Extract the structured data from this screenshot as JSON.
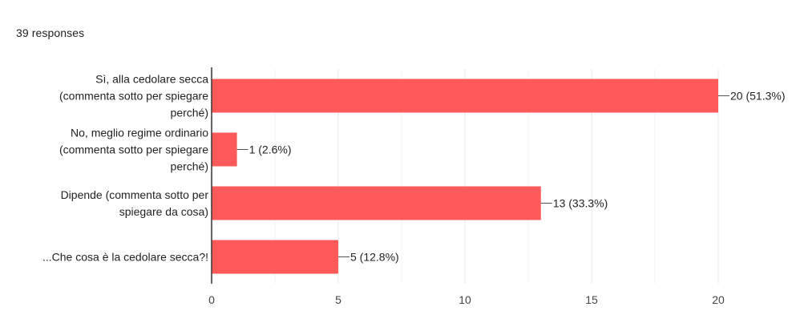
{
  "summary": {
    "responses_label": "39 responses"
  },
  "chart_data": {
    "type": "bar",
    "orientation": "horizontal",
    "categories": [
      [
        "Sì, alla cedolare secca",
        "(commenta sotto per spiegare",
        "perché)"
      ],
      [
        "No, meglio regime ordinario",
        "(commenta sotto per spiegare",
        "perché)"
      ],
      [
        "Dipende (commenta sotto per",
        "spiegare da cosa)"
      ],
      [
        "...Che cosa è la cedolare secca?!"
      ]
    ],
    "values": [
      20,
      1,
      13,
      5
    ],
    "data_labels": [
      "20 (51.3%)",
      "1 (2.6%)",
      "13 (33.3%)",
      "5 (12.8%)"
    ],
    "xlim": [
      0,
      20
    ],
    "x_ticks": [
      0,
      5,
      10,
      15,
      20
    ],
    "grid": true,
    "legend": "none",
    "bar_color": "#ff5a5a",
    "grid_color": "#e8e8e8",
    "axis_color": "#333333"
  }
}
